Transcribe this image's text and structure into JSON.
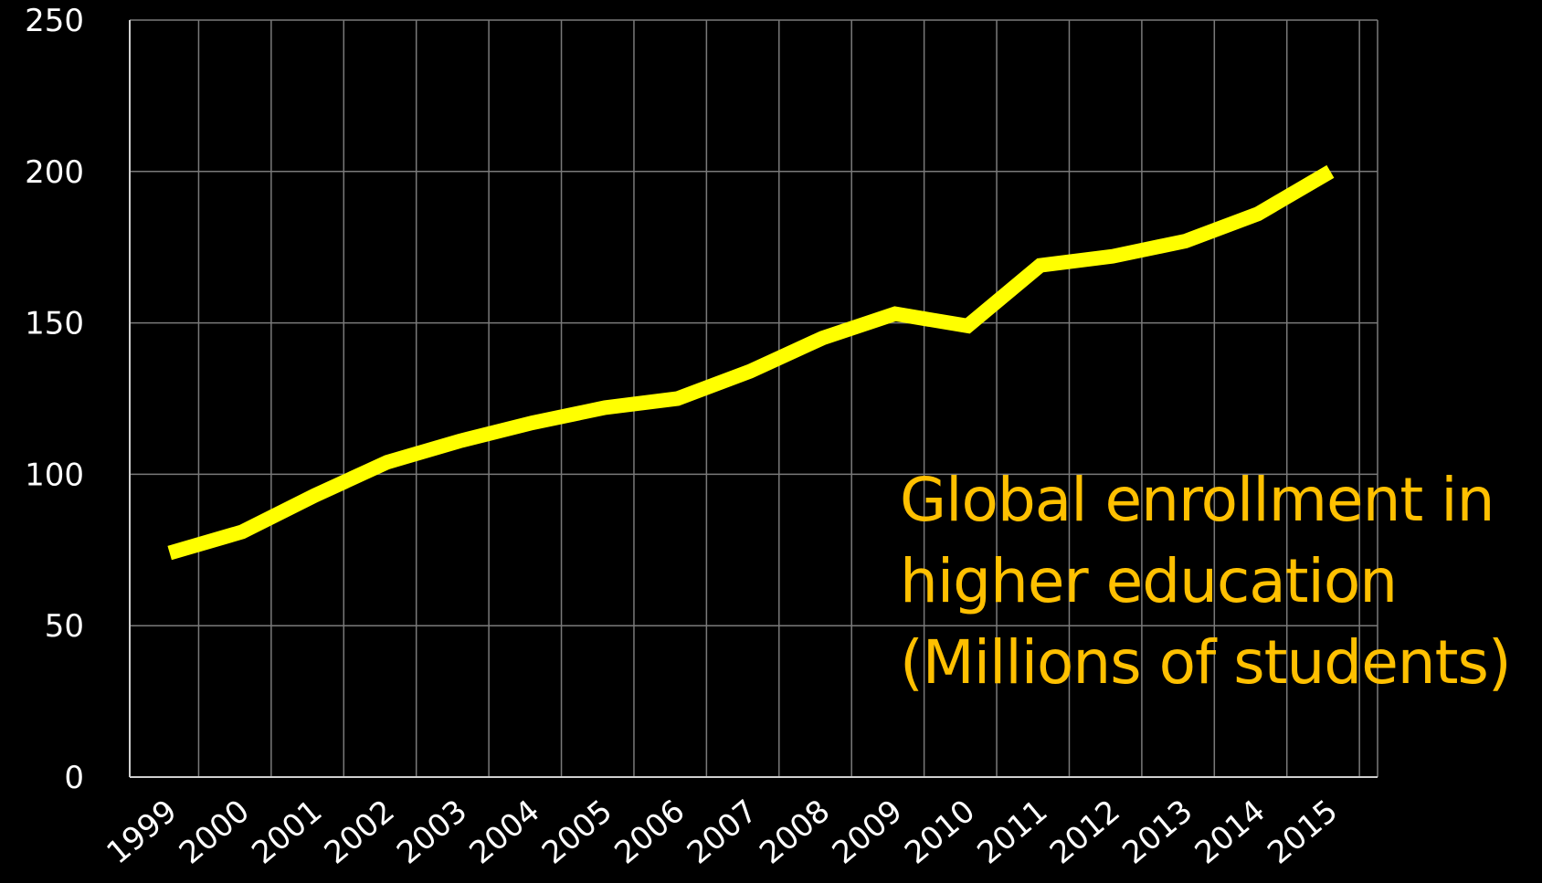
{
  "chart_data": {
    "type": "line",
    "title": "",
    "xlabel": "",
    "ylabel": "",
    "categories": [
      "1999",
      "2000",
      "2001",
      "2002",
      "2003",
      "2004",
      "2005",
      "2006",
      "2007",
      "2008",
      "2009",
      "2010",
      "2011",
      "2012",
      "2013",
      "2014",
      "2015"
    ],
    "series": [
      {
        "values": [
          74,
          81,
          93,
          104,
          111,
          117,
          122,
          125,
          134,
          145,
          153,
          149,
          169,
          172,
          177,
          186,
          200
        ],
        "color": "#ffff00"
      }
    ],
    "ylim": [
      0,
      250
    ],
    "yticks": [
      0,
      50,
      100,
      150,
      200,
      250
    ],
    "grid": true,
    "legend": "none",
    "annotation": {
      "lines": [
        "Global enrollment in",
        "higher education",
        "(Millions of students)"
      ],
      "color": "#ffc000"
    },
    "background": "#000000"
  }
}
